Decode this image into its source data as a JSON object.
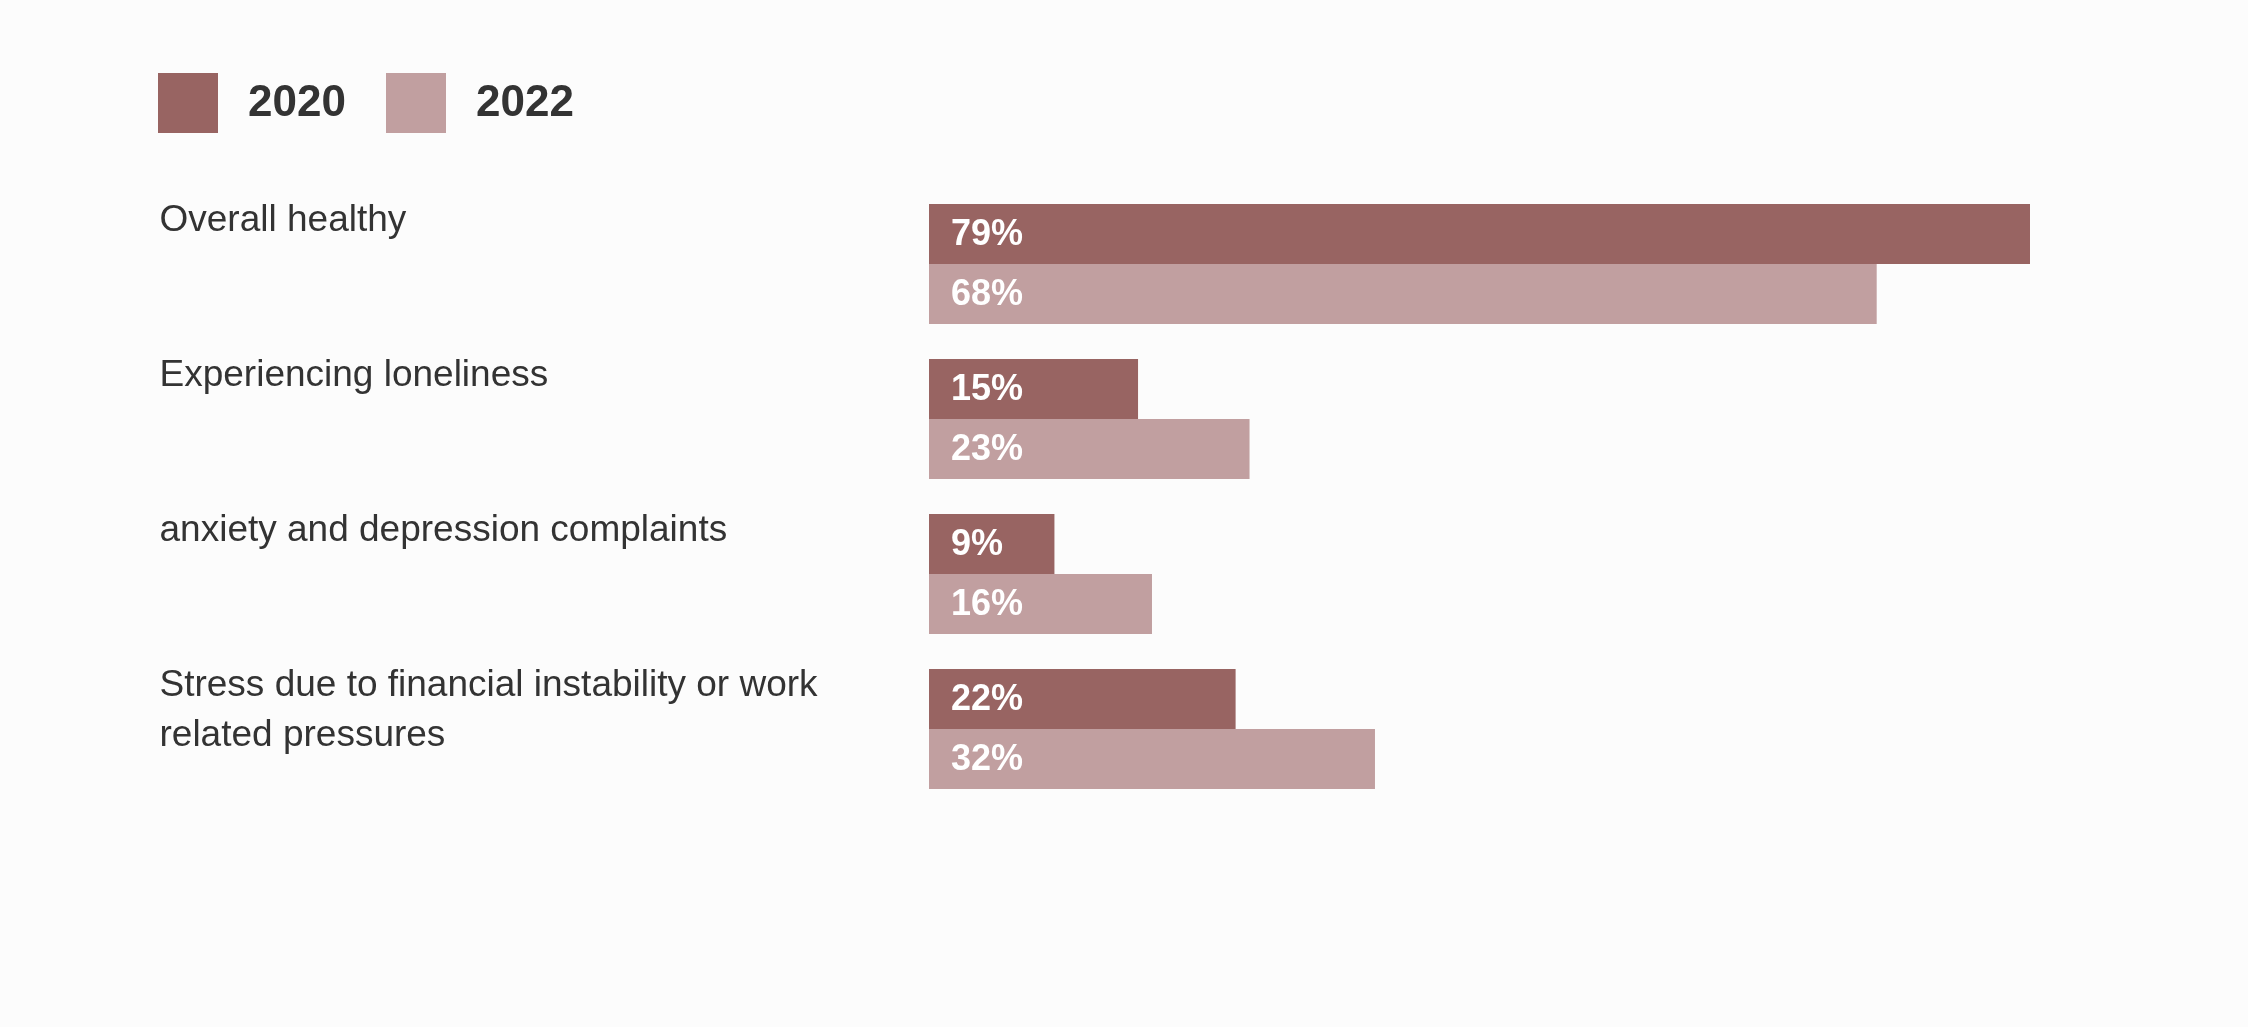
{
  "chart_data": {
    "type": "bar",
    "orientation": "horizontal",
    "categories": [
      "Overall healthy",
      "Experiencing loneliness",
      "anxiety and depression complaints",
      "Stress due to financial instability or work related pressures"
    ],
    "series": [
      {
        "name": "2020",
        "color": "#986462",
        "values": [
          79,
          15,
          9,
          22
        ],
        "value_labels": [
          "79%",
          "15%",
          "9%",
          "22%"
        ]
      },
      {
        "name": "2022",
        "color": "#c19fa0",
        "values": [
          68,
          23,
          16,
          32
        ],
        "value_labels": [
          "68%",
          "23%",
          "16%",
          "32%"
        ]
      }
    ],
    "legend": "top left",
    "grid": false
  }
}
